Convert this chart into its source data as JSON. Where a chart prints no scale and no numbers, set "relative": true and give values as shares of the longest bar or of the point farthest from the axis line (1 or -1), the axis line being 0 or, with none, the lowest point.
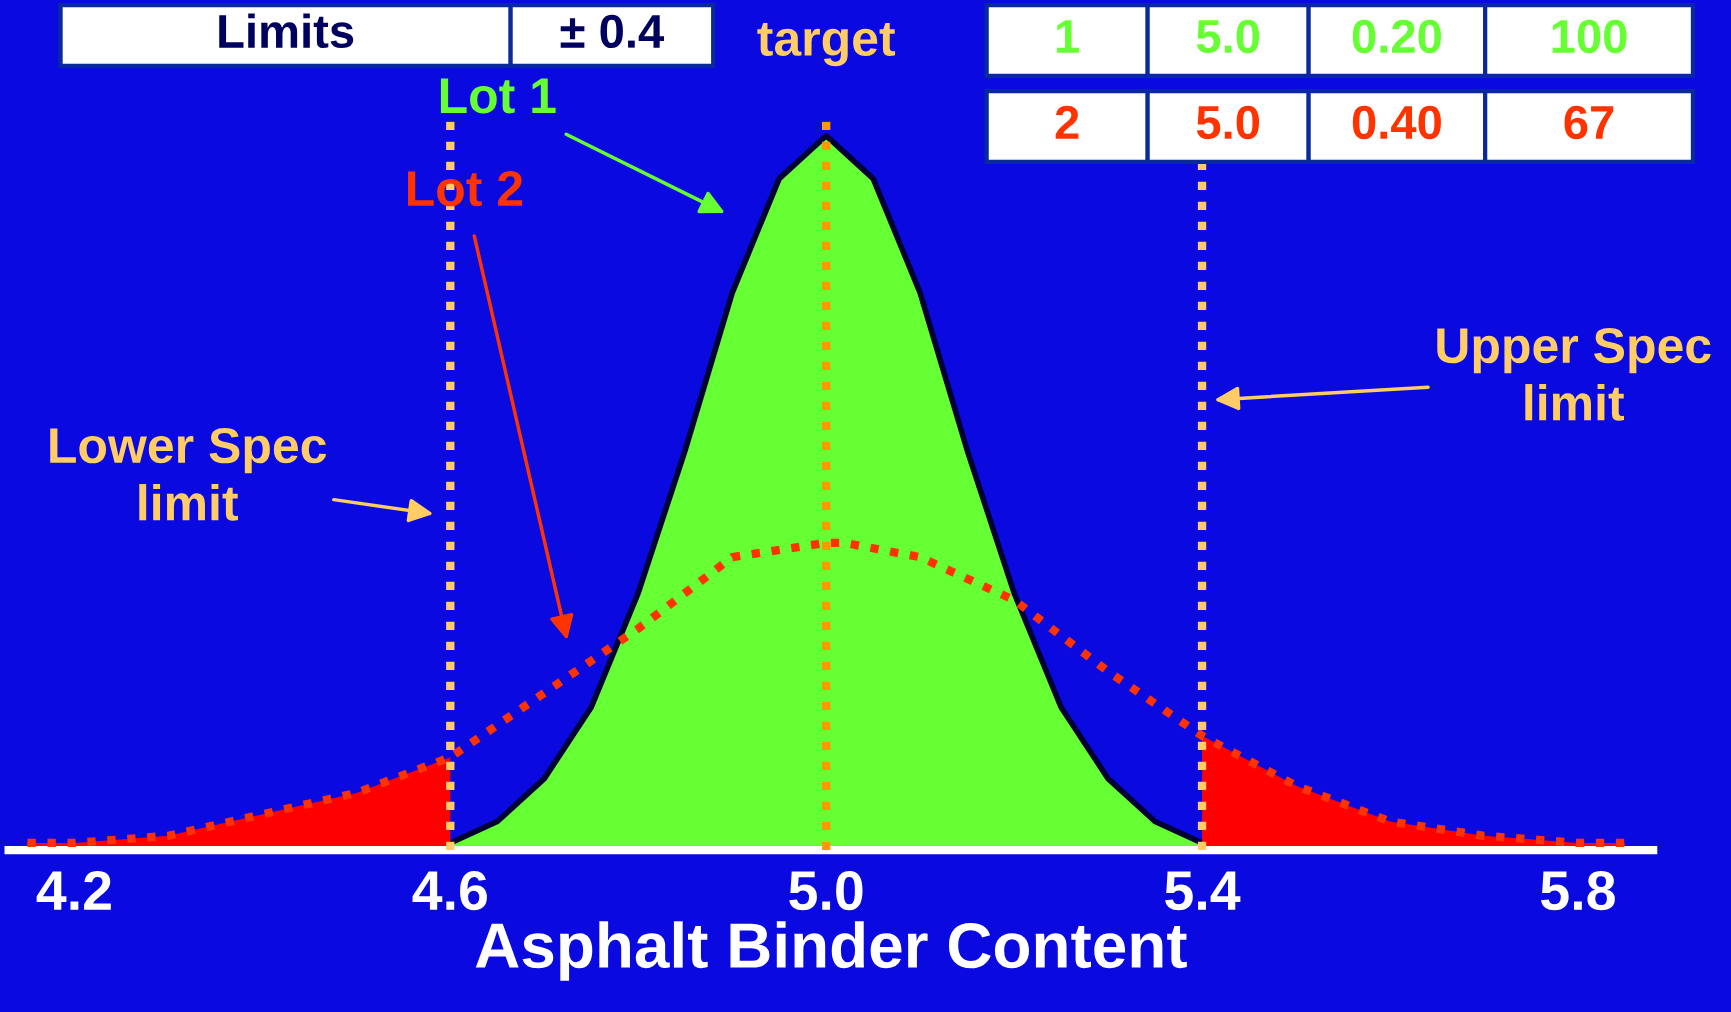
{
  "chart_data": {
    "type": "area",
    "relative": true,
    "xlabel": "Asphalt Binder Content",
    "xlim": [
      4.13,
      5.88
    ],
    "xticks": [
      4.2,
      4.6,
      {
        "value": 5.0,
        "label": "5.0"
      },
      5.4,
      5.8
    ],
    "grid": false,
    "marker": "none",
    "series": [
      {
        "name": "Lot 1",
        "color": "#66ff33",
        "x": [
          4.6,
          4.65,
          4.7,
          4.75,
          4.8,
          4.85,
          4.9,
          4.95,
          5.0,
          5.05,
          5.1,
          5.15,
          5.2,
          5.25,
          5.3,
          5.35,
          5.4
        ],
        "values": [
          0.01,
          0.04,
          0.1,
          0.2,
          0.36,
          0.56,
          0.78,
          0.94,
          1,
          0.94,
          0.78,
          0.56,
          0.36,
          0.2,
          0.1,
          0.04,
          0.01
        ]
      },
      {
        "color": "#ff0000",
        "x": [
          4.15,
          4.2,
          4.3,
          4.4,
          4.5,
          4.6
        ],
        "values": [
          0.01,
          0.01,
          0.02,
          0.05,
          0.08,
          0.13
        ]
      },
      {
        "color": "#ff0000",
        "x": [
          5.4,
          5.5,
          5.6,
          5.7,
          5.8,
          5.85
        ],
        "values": [
          0.16,
          0.09,
          0.04,
          0.02,
          0.01,
          0.01
        ]
      },
      {
        "name": "Lot 2",
        "type": "line",
        "line_style": "dotted",
        "color": "#ff3300",
        "x": [
          4.15,
          4.2,
          4.3,
          4.4,
          4.5,
          4.6,
          4.7,
          4.8,
          4.9,
          5.0,
          5.02,
          5.1,
          5.2,
          5.3,
          5.4,
          5.5,
          5.6,
          5.7,
          5.8,
          5.85
        ],
        "values": [
          0.01,
          0.01,
          0.02,
          0.05,
          0.08,
          0.13,
          0.22,
          0.31,
          0.41,
          0.43,
          0.43,
          0.41,
          0.35,
          0.25,
          0.16,
          0.09,
          0.04,
          0.02,
          0.01,
          0.01
        ]
      }
    ],
    "ref_lines": [
      {
        "axis": "x",
        "value": 4.6,
        "label": "Lower Spec limit",
        "color": "#ffcc66",
        "line_style": "dotted"
      },
      {
        "axis": "x",
        "value": 5.0,
        "label": "target",
        "color": "#ff9900",
        "line_style": "dotted"
      },
      {
        "axis": "x",
        "value": 5.4,
        "label": "Upper Spec limit",
        "color": "#ffcc66",
        "line_style": "dotted"
      }
    ],
    "annotations": [
      "Limits",
      "± 0.4",
      "1",
      "5.0",
      "0.20",
      "100",
      "2",
      "5.0",
      "0.40",
      "67"
    ]
  }
}
